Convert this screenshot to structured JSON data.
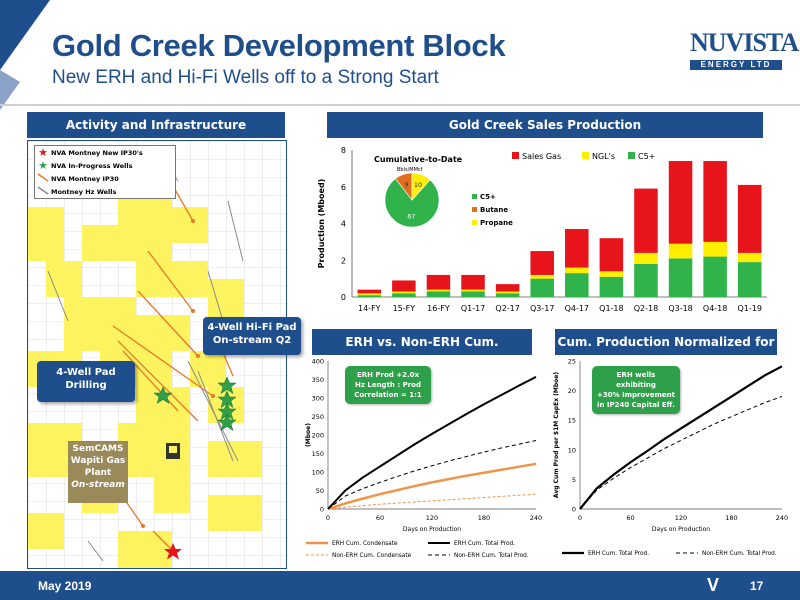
{
  "header": {
    "title": "Gold Creek Development Block",
    "subtitle": "New ERH and Hi-Fi Wells off to a Strong Start",
    "logo_main": "NuVista",
    "logo_sub": "ENERGY LTD"
  },
  "sections": {
    "activity": "Activity and Infrastructure",
    "sales": "Gold Creek Sales Production",
    "erh": "ERH vs. Non-ERH Cum. Production",
    "cost": "Cum. Production Normalized for Cost"
  },
  "map": {
    "legend": [
      {
        "label": "NVA Montney New IP30's",
        "icon": "red-star-icon"
      },
      {
        "label": "NVA In-Progress Wells",
        "icon": "green-star-icon"
      },
      {
        "label": "NVA Montney IP30",
        "icon": "orange-line-icon"
      },
      {
        "label": "Montney Hz Wells",
        "icon": "grey-line-icon"
      }
    ],
    "callout_drilling": "4-Well Pad\nDrilling",
    "callout_hifi": "4-Well Hi-Fi Pad\nOn-stream Q2",
    "plant": {
      "line1": "SemCAMS",
      "line2": "Wapiti Gas",
      "line3": "Plant",
      "line4": "On-stream"
    }
  },
  "sales_chart": {
    "ylabel": "Production (Mboed)",
    "legend": [
      "Sales Gas",
      "NGL's",
      "C5+"
    ],
    "pie_title": "Cumulative-to-Date",
    "pie_subtitle": "Bbls/MMcf",
    "pie_legend": [
      "C5+",
      "Butane",
      "Propane"
    ]
  },
  "erh_chart": {
    "ylabel": "(Mboe)",
    "xlabel": "Days on Production",
    "callout": "ERH Prod +2.0x\nHz Length : Prod\nCorrelation = 1:1",
    "legend": [
      "ERH Cum. Condensate",
      "ERH Cum. Total Prod.",
      "Non-ERH Cum. Condensate",
      "Non-ERH Cum. Total Prod."
    ]
  },
  "cost_chart": {
    "ylabel": "Avg Cum Prod per $1M CapEx (Mboe)",
    "xlabel": "Days on Production",
    "callout": "ERH wells exhibiting\n+30% Improvement\nin IP240 Capital Eff.",
    "legend": [
      "ERH Cum. Total Prod.",
      "Non-ERH Cum. Total Prod."
    ]
  },
  "footer": {
    "date": "May 2019",
    "page": "17"
  },
  "colors": {
    "brand": "#1f4e8c",
    "sales_gas": "#e8141c",
    "ngl": "#ffee00",
    "c5": "#2fb34a",
    "butane": "#e07020",
    "erh": "#f0944a"
  },
  "chart_data": [
    {
      "type": "bar",
      "title": "Gold Creek Sales Production",
      "ylabel": "Production (Mboed)",
      "ylim": [
        0,
        8
      ],
      "yticks": [
        0,
        2,
        4,
        6,
        8
      ],
      "categories": [
        "14-FY",
        "15-FY",
        "16-FY",
        "Q1-17",
        "Q2-17",
        "Q3-17",
        "Q4-17",
        "Q1-18",
        "Q2-18",
        "Q3-18",
        "Q4-18",
        "Q1-19"
      ],
      "series": [
        {
          "name": "C5+",
          "values": [
            0.1,
            0.2,
            0.3,
            0.3,
            0.2,
            1.0,
            1.3,
            1.1,
            1.8,
            2.1,
            2.2,
            1.9
          ]
        },
        {
          "name": "NGL's",
          "values": [
            0.1,
            0.1,
            0.1,
            0.1,
            0.1,
            0.2,
            0.3,
            0.3,
            0.6,
            0.8,
            0.8,
            0.5
          ]
        },
        {
          "name": "Sales Gas",
          "values": [
            0.2,
            0.6,
            0.8,
            0.8,
            0.4,
            1.3,
            2.1,
            1.8,
            3.5,
            4.5,
            4.4,
            3.7
          ]
        }
      ],
      "legend": "top-right"
    },
    {
      "type": "pie",
      "title": "Cumulative-to-Date",
      "subtitle": "Bbls/MMcf",
      "categories": [
        "C5+",
        "Butane",
        "Propane"
      ],
      "values": [
        67,
        9,
        10
      ]
    },
    {
      "type": "line",
      "title": "ERH vs. Non-ERH Cum. Production",
      "ylabel": "(Mboe)",
      "xlabel": "Days on Production",
      "xlim": [
        0,
        240
      ],
      "ylim": [
        0,
        400
      ],
      "xticks": [
        0,
        60,
        120,
        180,
        240
      ],
      "yticks": [
        0,
        50,
        100,
        150,
        200,
        250,
        300,
        350,
        400
      ],
      "x": [
        0,
        20,
        40,
        60,
        80,
        100,
        120,
        140,
        160,
        180,
        200,
        220,
        240
      ],
      "series": [
        {
          "name": "ERH Cum. Condensate",
          "values": [
            0,
            15,
            28,
            40,
            51,
            62,
            72,
            81,
            90,
            98,
            106,
            114,
            122
          ]
        },
        {
          "name": "ERH Cum. Total Prod.",
          "values": [
            0,
            50,
            85,
            115,
            145,
            175,
            203,
            230,
            257,
            283,
            308,
            333,
            357
          ]
        },
        {
          "name": "Non-ERH Cum. Condensate",
          "values": [
            0,
            5,
            9,
            13,
            16,
            19,
            22,
            25,
            28,
            31,
            34,
            37,
            40
          ]
        },
        {
          "name": "Non-ERH Cum. Total Prod.",
          "values": [
            0,
            35,
            55,
            72,
            88,
            103,
            117,
            130,
            142,
            154,
            165,
            175,
            185
          ]
        }
      ]
    },
    {
      "type": "line",
      "title": "Cum. Production Normalized for Cost",
      "ylabel": "Avg Cum Prod per $1M CapEx (Mboe)",
      "xlabel": "Days on Production",
      "xlim": [
        0,
        240
      ],
      "ylim": [
        0,
        25
      ],
      "xticks": [
        0,
        60,
        120,
        180,
        240
      ],
      "yticks": [
        0,
        5,
        10,
        15,
        20,
        25
      ],
      "x": [
        0,
        20,
        40,
        60,
        80,
        100,
        120,
        140,
        160,
        180,
        200,
        220,
        240
      ],
      "series": [
        {
          "name": "ERH Cum. Total Prod.",
          "values": [
            0,
            3.5,
            5.8,
            7.9,
            9.8,
            11.8,
            13.6,
            15.4,
            17.2,
            19.0,
            20.8,
            22.6,
            24.1
          ]
        },
        {
          "name": "Non-ERH Cum. Total Prod.",
          "values": [
            0,
            3.2,
            5.2,
            7.0,
            8.6,
            10.2,
            11.6,
            13.0,
            14.4,
            15.6,
            16.8,
            18.0,
            19.0
          ]
        }
      ]
    }
  ]
}
